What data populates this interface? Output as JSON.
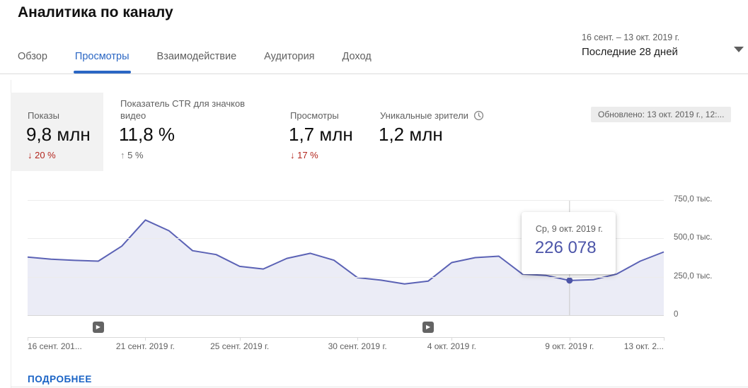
{
  "header": {
    "title": "Аналитика по каналу",
    "date_range": "16 сент. – 13 окт. 2019 г.",
    "date_preset": "Последние 28 дней"
  },
  "tabs": {
    "active_index": 1,
    "items": [
      {
        "id": "overview",
        "label": "Обзор"
      },
      {
        "id": "views",
        "label": "Просмотры"
      },
      {
        "id": "engagement",
        "label": "Взаимодействие"
      },
      {
        "id": "audience",
        "label": "Аудитория"
      },
      {
        "id": "revenue",
        "label": "Доход"
      }
    ]
  },
  "metrics": {
    "updated_badge": "Обновлено: 13 окт. 2019 г., 12:...",
    "cards": [
      {
        "id": "impressions",
        "label": "Показы",
        "value": "9,8 млн",
        "delta": {
          "dir": "down",
          "text": "20 %",
          "tone": "red"
        },
        "selected": true
      },
      {
        "id": "ctr",
        "label": "Показатель CTR для значков видео",
        "value": "11,8 %",
        "delta": {
          "dir": "up",
          "text": "5 %",
          "tone": "gray"
        },
        "selected": false
      },
      {
        "id": "views",
        "label": "Просмотры",
        "value": "1,7 млн",
        "delta": {
          "dir": "down",
          "text": "17 %",
          "tone": "red"
        },
        "selected": false
      },
      {
        "id": "unique-viewers",
        "label": "Уникальные зрители",
        "value": "1,2 млн",
        "delta": null,
        "icon": "clock-icon",
        "selected": false
      }
    ]
  },
  "chart_data": {
    "type": "area",
    "x_range": "16 сент. 2019 г. – 13 окт. 2019 г.",
    "points": 28,
    "values": [
      378000,
      365000,
      357000,
      352000,
      450000,
      620000,
      550000,
      420000,
      395000,
      318000,
      301000,
      370000,
      403000,
      358000,
      245000,
      228000,
      204000,
      222000,
      343000,
      375000,
      384000,
      268000,
      259000,
      226078,
      231000,
      268000,
      352000,
      412000
    ],
    "ylim": [
      0,
      750000
    ],
    "grid": true,
    "legend": false,
    "y_ticks": [
      {
        "v": 0,
        "label": "0"
      },
      {
        "v": 250000,
        "label": "250,0 тыс."
      },
      {
        "v": 500000,
        "label": "500,0 тыс."
      },
      {
        "v": 750000,
        "label": "750,0 тыс."
      }
    ],
    "x_ticks": [
      {
        "i": 0,
        "label": "16 сент. 201...",
        "align": "left"
      },
      {
        "i": 5,
        "label": "21 сент. 2019 г.",
        "align": "center"
      },
      {
        "i": 9,
        "label": "25 сент. 2019 г.",
        "align": "center"
      },
      {
        "i": 14,
        "label": "30 сент. 2019 г.",
        "align": "center"
      },
      {
        "i": 18,
        "label": "4 окт. 2019 г.",
        "align": "center"
      },
      {
        "i": 23,
        "label": "9 окт. 2019 г.",
        "align": "center"
      },
      {
        "i": 27,
        "label": "13 окт. 2...",
        "align": "right"
      }
    ],
    "hover": {
      "i": 23,
      "date_label": "Ср, 9 окт. 2019 г.",
      "value_label": "226 078",
      "value": 226078
    },
    "video_markers": [
      {
        "i": 3
      },
      {
        "i": 17
      }
    ],
    "colors": {
      "line": "#5b62b5",
      "fill": "rgba(91,98,181,0.12)",
      "dot": "#4d55a8",
      "hover_line": "#c9c9c9"
    }
  },
  "footer": {
    "more_label": "ПОДРОБНЕЕ"
  }
}
